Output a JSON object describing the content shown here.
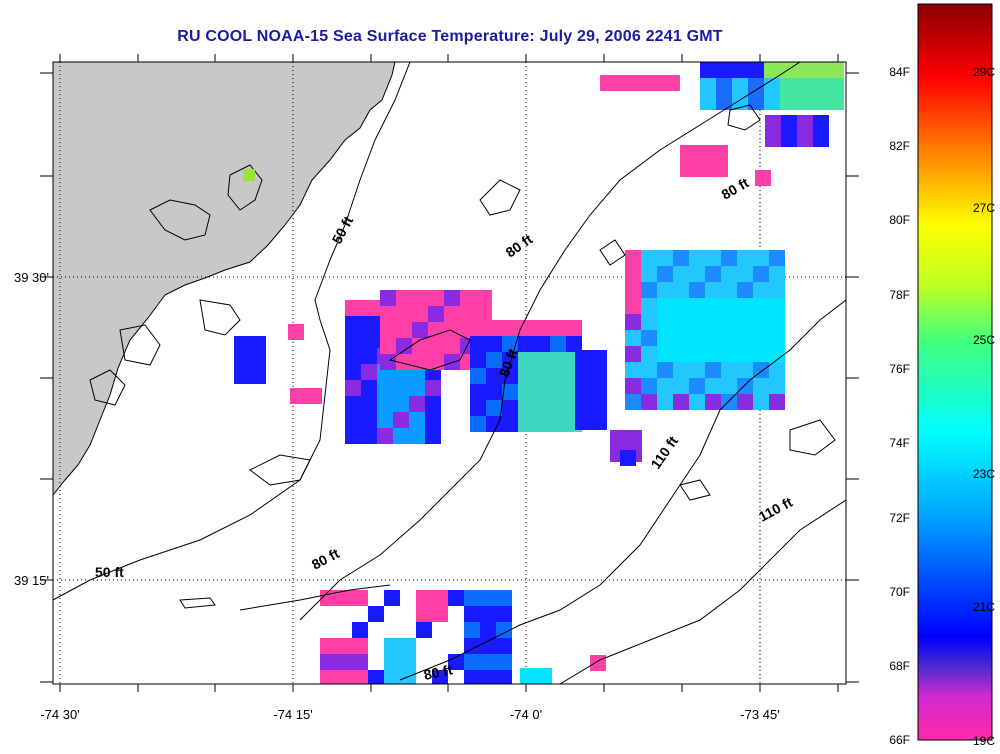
{
  "title": "RU COOL  NOAA-15  Sea Surface Temperature:  July 29, 2006 2241 GMT",
  "x_ticks": [
    "-74 30'",
    "-74 15'",
    "-74 0'",
    "-73 45'"
  ],
  "y_ticks": [
    "39 30'",
    "39 15'"
  ],
  "contour_labels": [
    "50 ft",
    "50 ft",
    "80 ft",
    "80 ft",
    "80 ft",
    "80 ft",
    "80 ft",
    "110 ft",
    "110 ft"
  ],
  "colorbar": {
    "f_labels": [
      "84F",
      "82F",
      "80F",
      "78F",
      "76F",
      "74F",
      "72F",
      "70F",
      "68F",
      "66F"
    ],
    "c_labels": [
      "29C",
      "27C",
      "25C",
      "23C",
      "21C",
      "19C"
    ]
  },
  "colors": {
    "title": "#1a1aa6",
    "land": "#c8c8c8",
    "magenta": "#ff3fa8",
    "purple": "#8a2be2",
    "blue": "#1a1aff",
    "cyan": "#00e5ff"
  }
}
